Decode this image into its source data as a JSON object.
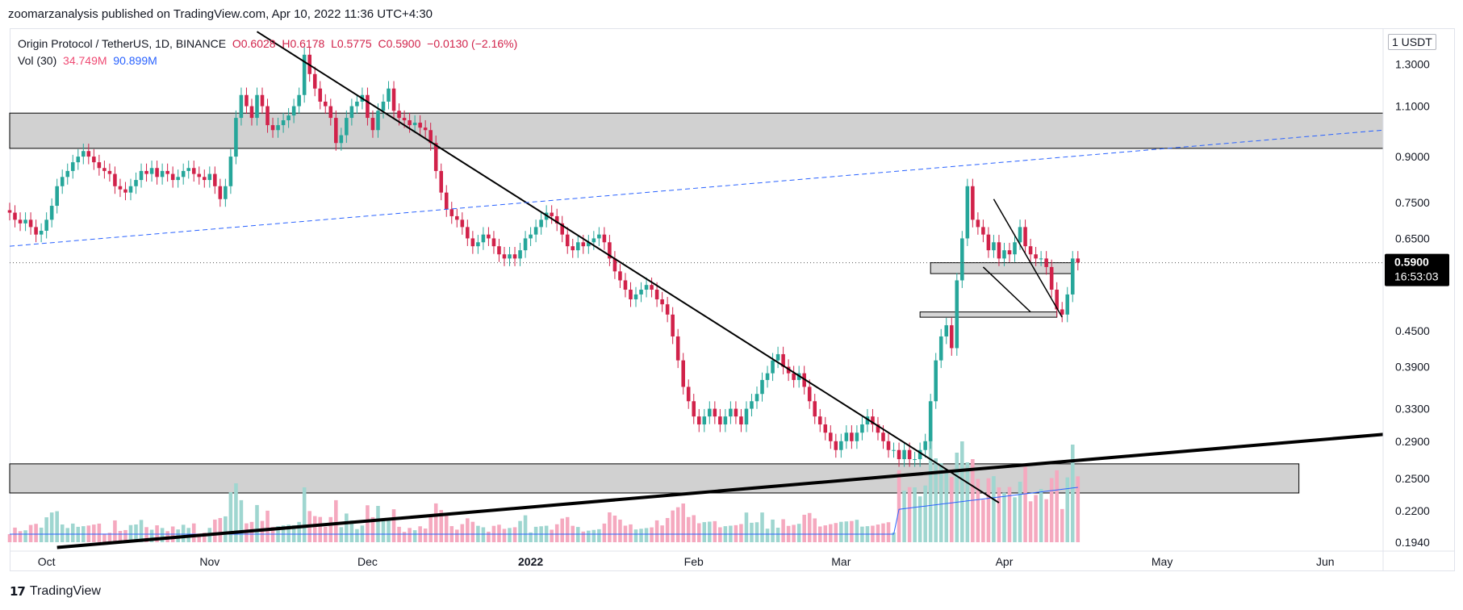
{
  "header": {
    "published": "zoomarzanalysis published on TradingView.com, Apr 10, 2022 11:36 UTC+4:30"
  },
  "legend": {
    "symbol": "Origin Protocol / TetherUS, 1D, BINANCE",
    "o": "O0.6028",
    "h": "H0.6178",
    "l": "L0.5775",
    "c": "C0.5900",
    "change": "−0.0130 (−2.16%)",
    "vol_label": "Vol (30)",
    "vol_value": "34.749M",
    "vol_ma": "90.899M"
  },
  "price_axis": {
    "currency": "1 USDT",
    "last_price": "0.5900",
    "countdown": "16:53:03"
  },
  "footer": {
    "brand": "TradingView"
  },
  "colors": {
    "up": "#26a69a",
    "down": "#d1224a",
    "vol_up": "#9fd6d0",
    "vol_down": "#f5a9bf",
    "trend_dashed": "#2962ff",
    "ma": "#2962ff",
    "zone": "#cccccc",
    "line": "#000000"
  },
  "chart_data": {
    "type": "candlestick",
    "symbol": "OGN/USDT",
    "timeframe": "1D",
    "y_scale": "log",
    "ylim": [
      0.194,
      1.5
    ],
    "y_ticks": [
      "1.3000",
      "1.1000",
      "0.9000",
      "0.7500",
      "0.6500",
      "0.4500",
      "0.3900",
      "0.3300",
      "0.2900",
      "0.2500",
      "0.2200",
      "0.1940"
    ],
    "y_tick_values": [
      1.3,
      1.1,
      0.9,
      0.75,
      0.65,
      0.45,
      0.39,
      0.33,
      0.29,
      0.25,
      0.22,
      0.194
    ],
    "x_labels": [
      {
        "label": "Oct",
        "date": "2021-10-01"
      },
      {
        "label": "Nov",
        "date": "2021-11-01"
      },
      {
        "label": "Dec",
        "date": "2021-12-01"
      },
      {
        "label": "2022",
        "date": "2022-01-01"
      },
      {
        "label": "Feb",
        "date": "2022-02-01"
      },
      {
        "label": "Mar",
        "date": "2022-03-01"
      },
      {
        "label": "Apr",
        "date": "2022-04-01"
      },
      {
        "label": "May",
        "date": "2022-05-01"
      },
      {
        "label": "Jun",
        "date": "2022-06-01"
      }
    ],
    "x_range": [
      "2021-09-24",
      "2022-06-12"
    ],
    "closes": {
      "start": "2021-09-24",
      "values": [
        0.72,
        0.7,
        0.69,
        0.7,
        0.68,
        0.66,
        0.67,
        0.7,
        0.74,
        0.8,
        0.83,
        0.85,
        0.88,
        0.9,
        0.92,
        0.9,
        0.88,
        0.86,
        0.85,
        0.84,
        0.8,
        0.79,
        0.78,
        0.8,
        0.82,
        0.85,
        0.84,
        0.86,
        0.83,
        0.85,
        0.84,
        0.82,
        0.83,
        0.85,
        0.86,
        0.84,
        0.83,
        0.82,
        0.84,
        0.8,
        0.76,
        0.8,
        0.9,
        1.05,
        1.15,
        1.1,
        1.05,
        1.15,
        1.1,
        1.02,
        1.0,
        1.02,
        1.04,
        1.06,
        1.1,
        1.15,
        1.35,
        1.25,
        1.18,
        1.12,
        1.1,
        1.05,
        0.95,
        0.98,
        1.05,
        1.1,
        1.12,
        1.15,
        1.05,
        1.0,
        1.08,
        1.12,
        1.18,
        1.08,
        1.05,
        1.04,
        1.02,
        1.03,
        1.01,
        1.0,
        0.95,
        0.85,
        0.78,
        0.73,
        0.71,
        0.7,
        0.68,
        0.65,
        0.63,
        0.64,
        0.66,
        0.65,
        0.63,
        0.61,
        0.6,
        0.61,
        0.6,
        0.62,
        0.65,
        0.66,
        0.68,
        0.7,
        0.72,
        0.71,
        0.69,
        0.66,
        0.63,
        0.62,
        0.64,
        0.63,
        0.64,
        0.65,
        0.66,
        0.64,
        0.6,
        0.57,
        0.55,
        0.53,
        0.51,
        0.52,
        0.53,
        0.54,
        0.53,
        0.51,
        0.5,
        0.48,
        0.44,
        0.4,
        0.36,
        0.34,
        0.32,
        0.31,
        0.32,
        0.33,
        0.32,
        0.31,
        0.32,
        0.33,
        0.32,
        0.31,
        0.33,
        0.34,
        0.35,
        0.37,
        0.38,
        0.4,
        0.41,
        0.39,
        0.38,
        0.37,
        0.38,
        0.36,
        0.34,
        0.32,
        0.31,
        0.3,
        0.29,
        0.28,
        0.29,
        0.3,
        0.29,
        0.3,
        0.31,
        0.32,
        0.31,
        0.3,
        0.29,
        0.28,
        0.28,
        0.27,
        0.28,
        0.27,
        0.27,
        0.28,
        0.29,
        0.34,
        0.4,
        0.44,
        0.46,
        0.42,
        0.55,
        0.65,
        0.8,
        0.7,
        0.68,
        0.66,
        0.62,
        0.64,
        0.6,
        0.62,
        0.61,
        0.64,
        0.68,
        0.63,
        0.61,
        0.6,
        0.6,
        0.58,
        0.53,
        0.49,
        0.48,
        0.52,
        0.6,
        0.59
      ]
    },
    "zones": [
      {
        "from": "2021-09-24",
        "to": "2022-06-12",
        "low": 0.93,
        "high": 1.07
      },
      {
        "from": "2021-09-24",
        "to": "2022-05-27",
        "low": 0.236,
        "high": 0.265
      }
    ],
    "small_zones": [
      {
        "from": "2022-03-18",
        "to": "2022-04-14",
        "low": 0.565,
        "high": 0.59
      },
      {
        "from": "2022-03-16",
        "to": "2022-04-11",
        "low": 0.475,
        "high": 0.485
      }
    ],
    "lines": [
      {
        "style": "solid",
        "width": 2,
        "points": [
          [
            "2021-11-10",
            1.48
          ],
          [
            "2022-03-31",
            0.227
          ]
        ]
      },
      {
        "style": "bold",
        "width": 4,
        "points": [
          [
            "2021-10-03",
            0.19
          ],
          [
            "2022-06-12",
            0.298
          ]
        ]
      },
      {
        "style": "dashed",
        "width": 1,
        "points": [
          [
            "2021-09-24",
            0.63
          ],
          [
            "2022-06-12",
            1.0
          ]
        ]
      },
      {
        "style": "solid",
        "width": 1.5,
        "points": [
          [
            "2022-03-30",
            0.76
          ],
          [
            "2022-04-12",
            0.475
          ]
        ]
      },
      {
        "style": "solid",
        "width": 1.5,
        "points": [
          [
            "2022-03-28",
            0.58
          ],
          [
            "2022-04-06",
            0.485
          ]
        ]
      }
    ],
    "volume": {
      "vol_label": "Vol (30)"
    }
  }
}
